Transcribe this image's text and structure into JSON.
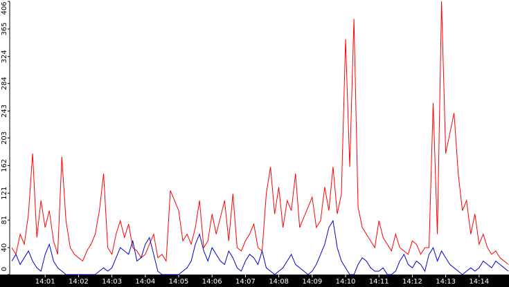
{
  "chart_data": {
    "type": "line",
    "categories": [
      null,
      null,
      null,
      null,
      null,
      null,
      null,
      null,
      "14:01",
      null,
      null,
      null,
      null,
      null,
      null,
      null,
      "14:02",
      null,
      null,
      null,
      null,
      null,
      null,
      null,
      "14:03",
      null,
      null,
      null,
      null,
      null,
      null,
      null,
      "14:04",
      null,
      null,
      null,
      null,
      null,
      null,
      null,
      "14:05",
      null,
      null,
      null,
      null,
      null,
      null,
      null,
      "14:06",
      null,
      null,
      null,
      null,
      null,
      null,
      null,
      "14:07",
      null,
      null,
      null,
      null,
      null,
      null,
      null,
      "14:08",
      null,
      null,
      null,
      null,
      null,
      null,
      null,
      "14:09",
      null,
      null,
      null,
      null,
      null,
      null,
      null,
      "14:10",
      null,
      null,
      null,
      null,
      null,
      null,
      null,
      "14:11",
      null,
      null,
      null,
      null,
      null,
      null,
      null,
      "14:12",
      null,
      null,
      null,
      null,
      null,
      null,
      null,
      "14:13",
      null,
      null,
      null,
      null,
      null,
      null,
      null,
      "14:14",
      null,
      null,
      null,
      null,
      null,
      null,
      null
    ],
    "series": [
      {
        "color": "#ff0000",
        "values": [
          40,
          30,
          60,
          45,
          90,
          180,
          55,
          110,
          70,
          95,
          50,
          30,
          175,
          80,
          40,
          30,
          25,
          20,
          35,
          45,
          60,
          95,
          150,
          40,
          30,
          60,
          80,
          55,
          75,
          40,
          35,
          25,
          30,
          45,
          60,
          25,
          30,
          20,
          125,
          110,
          95,
          50,
          60,
          45,
          70,
          110,
          40,
          50,
          90,
          60,
          85,
          110,
          50,
          120,
          40,
          35,
          50,
          60,
          75,
          40,
          35,
          120,
          160,
          90,
          130,
          70,
          110,
          95,
          150,
          70,
          85,
          100,
          115,
          70,
          80,
          130,
          95,
          160,
          90,
          120,
          350,
          160,
          380,
          100,
          70,
          60,
          50,
          40,
          80,
          55,
          45,
          35,
          60,
          40,
          35,
          30,
          50,
          45,
          30,
          40,
          40,
          255,
          60,
          406,
          180,
          210,
          240,
          150,
          95,
          110,
          60,
          90,
          45,
          60,
          40,
          30,
          35,
          25,
          20,
          15
        ]
      },
      {
        "color": "#0000cc",
        "values": [
          20,
          30,
          15,
          25,
          35,
          20,
          10,
          5,
          30,
          45,
          20,
          10,
          5,
          0,
          0,
          0,
          0,
          0,
          0,
          0,
          0,
          5,
          10,
          5,
          10,
          25,
          40,
          35,
          30,
          50,
          20,
          25,
          45,
          55,
          30,
          5,
          0,
          0,
          0,
          0,
          0,
          5,
          10,
          20,
          45,
          60,
          35,
          20,
          40,
          30,
          20,
          15,
          35,
          25,
          10,
          5,
          20,
          30,
          25,
          15,
          35,
          10,
          5,
          0,
          5,
          10,
          20,
          30,
          15,
          10,
          5,
          0,
          5,
          15,
          30,
          45,
          70,
          80,
          40,
          20,
          10,
          0,
          0,
          15,
          25,
          20,
          10,
          5,
          5,
          10,
          0,
          0,
          5,
          20,
          30,
          15,
          10,
          20,
          15,
          5,
          30,
          40,
          20,
          35,
          25,
          15,
          10,
          5,
          0,
          5,
          10,
          5,
          10,
          20,
          15,
          10,
          20,
          15,
          10,
          5
        ]
      }
    ],
    "ylim": [
      0,
      406
    ],
    "yticks": [
      0,
      40,
      81,
      121,
      162,
      203,
      243,
      284,
      324,
      365,
      406
    ]
  }
}
